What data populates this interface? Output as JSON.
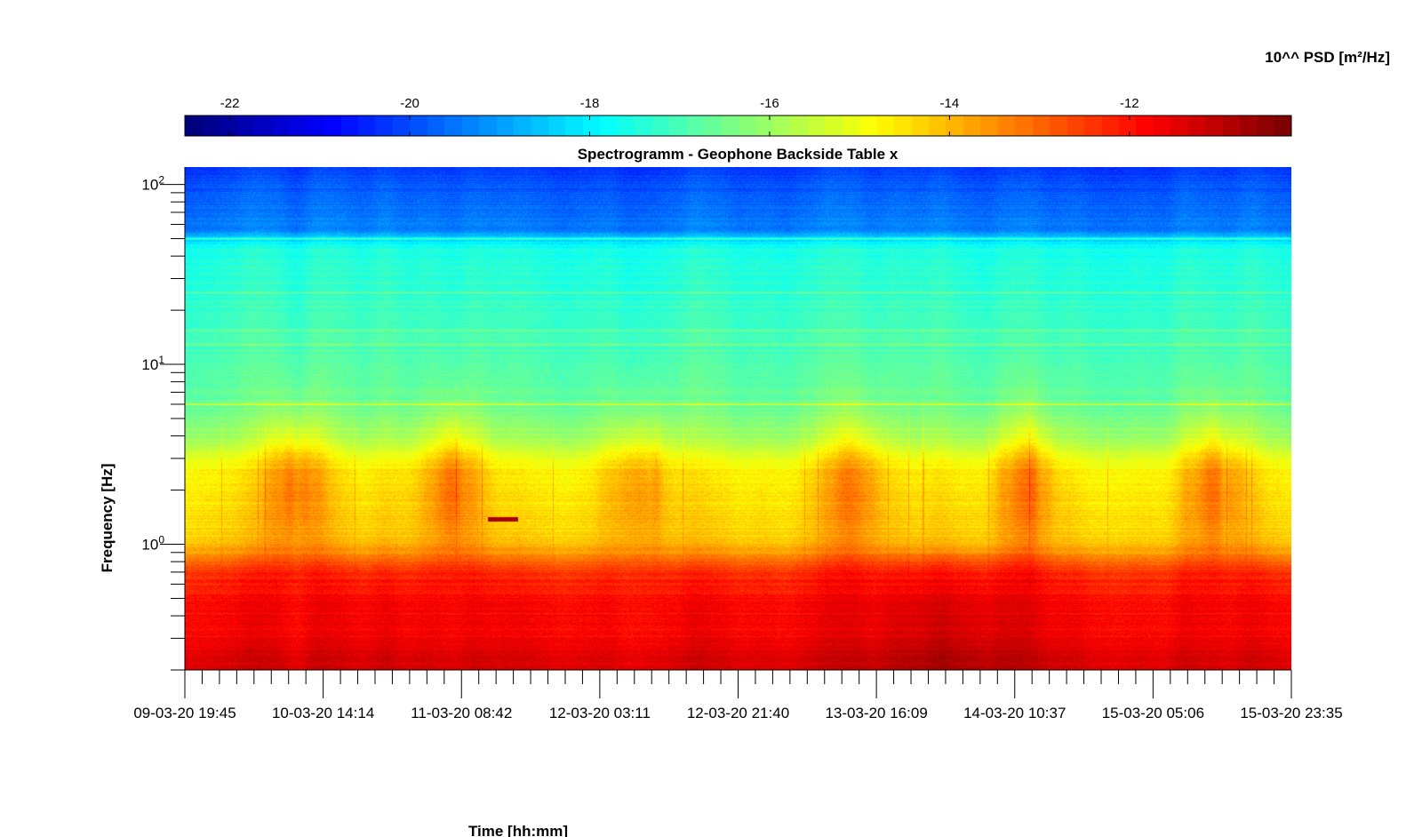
{
  "chart_data": {
    "type": "heatmap",
    "title": "Spectrogramm - Geophone Backside Table x",
    "xlabel": "Time [hh:mm]",
    "ylabel": "Frequency [Hz]",
    "colorbar_label": "10^^ PSD [m²/Hz]",
    "y_scale": "log",
    "ylim": [
      0.2,
      125
    ],
    "y_ticks": [
      {
        "value": 100,
        "base": "10",
        "exp": "2"
      },
      {
        "value": 10,
        "base": "10",
        "exp": "1"
      },
      {
        "value": 1,
        "base": "10",
        "exp": "0"
      }
    ],
    "x_tick_labels": [
      "09-03-20 19:45",
      "10-03-20 14:14",
      "11-03-20 08:42",
      "12-03-20 03:11",
      "12-03-20 21:40",
      "13-03-20 16:09",
      "14-03-20 10:37",
      "15-03-20 05:06",
      "15-03-20 23:35"
    ],
    "x_minor_ticks_between": 7,
    "colorbar": {
      "orientation": "horizontal",
      "placement": "top",
      "colormap": "jet",
      "range": [
        -22.5,
        -10.2
      ],
      "ticks": [
        -22,
        -20,
        -18,
        -16,
        -14,
        -12
      ],
      "tick_labels": [
        "-22",
        "-20",
        "-18",
        "-16",
        "-14",
        "-12"
      ]
    },
    "grid": false,
    "psd_profile": {
      "frequency_hz": [
        0.2,
        0.3,
        0.5,
        0.7,
        0.9,
        1.1,
        1.5,
        2.5,
        4,
        6,
        10,
        20,
        45,
        55,
        125
      ],
      "log10_psd": [
        -11.2,
        -11.6,
        -11.8,
        -12.3,
        -13.6,
        -14.2,
        -14.4,
        -14.6,
        -16.0,
        -16.6,
        -16.9,
        -17.2,
        -17.6,
        -19.4,
        -20.2
      ]
    },
    "spectral_lines": [
      {
        "frequency_hz": 6.0,
        "delta_log10_psd": 1.3
      },
      {
        "frequency_hz": 12.8,
        "delta_log10_psd": 0.9
      },
      {
        "frequency_hz": 15.5,
        "delta_log10_psd": 0.6
      },
      {
        "frequency_hz": 25.0,
        "delta_log10_psd": 0.9
      },
      {
        "frequency_hz": 50.0,
        "delta_log10_psd": 1.5
      }
    ]
  }
}
